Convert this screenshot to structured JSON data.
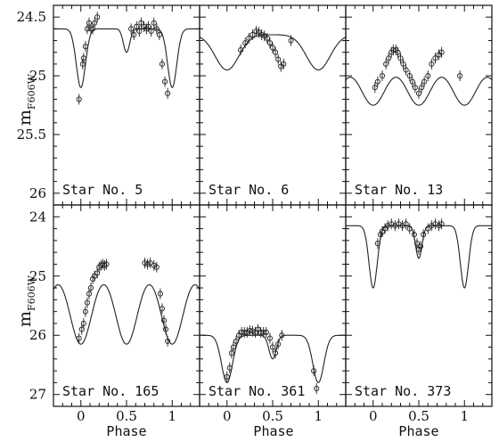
{
  "figure": {
    "ylabel_main": "m",
    "ylabel_sub": "F606W",
    "xlabel": "Phase"
  },
  "chart_data": [
    {
      "type": "scatter",
      "panel": "Star No. 5",
      "xlim": [
        -0.3,
        1.3
      ],
      "ylim": [
        26.1,
        24.4
      ],
      "xticks": [],
      "yticks": [
        "24.5",
        "25",
        "25.5",
        "26"
      ],
      "model": {
        "base": 24.6,
        "primary": {
          "center": 0.0,
          "depth": 0.5,
          "width": 0.05
        },
        "secondary": {
          "center": 0.5,
          "depth": 0.2,
          "width": 0.035
        }
      },
      "points": [
        [
          -0.02,
          25.2
        ],
        [
          0.02,
          24.9
        ],
        [
          0.03,
          24.85
        ],
        [
          0.05,
          24.75
        ],
        [
          0.07,
          24.6
        ],
        [
          0.09,
          24.55
        ],
        [
          0.11,
          24.6
        ],
        [
          0.13,
          24.6
        ],
        [
          0.15,
          24.55
        ],
        [
          0.18,
          24.5
        ],
        [
          0.55,
          24.6
        ],
        [
          0.58,
          24.65
        ],
        [
          0.61,
          24.58
        ],
        [
          0.64,
          24.62
        ],
        [
          0.66,
          24.55
        ],
        [
          0.69,
          24.58
        ],
        [
          0.72,
          24.6
        ],
        [
          0.74,
          24.58
        ],
        [
          0.77,
          24.62
        ],
        [
          0.8,
          24.55
        ],
        [
          0.83,
          24.6
        ],
        [
          0.86,
          24.65
        ],
        [
          0.89,
          24.9
        ],
        [
          0.92,
          25.05
        ],
        [
          0.95,
          25.15
        ]
      ]
    },
    {
      "type": "scatter",
      "panel": "Star No. 6",
      "xlim": [
        -0.3,
        1.3
      ],
      "ylim": [
        26.1,
        24.4
      ],
      "xticks": [],
      "yticks": [],
      "model": {
        "base": 24.65,
        "primary": {
          "center": 0.0,
          "depth": 0.3,
          "width": 0.13
        },
        "secondary": {
          "center": 0.5,
          "depth": 0.0,
          "width": 0.13
        }
      },
      "points": [
        [
          0.15,
          24.78
        ],
        [
          0.2,
          24.72
        ],
        [
          0.24,
          24.68
        ],
        [
          0.28,
          24.65
        ],
        [
          0.32,
          24.62
        ],
        [
          0.35,
          24.63
        ],
        [
          0.38,
          24.65
        ],
        [
          0.41,
          24.66
        ],
        [
          0.44,
          24.68
        ],
        [
          0.47,
          24.72
        ],
        [
          0.5,
          24.76
        ],
        [
          0.53,
          24.8
        ],
        [
          0.56,
          24.86
        ],
        [
          0.59,
          24.92
        ],
        [
          0.62,
          24.9
        ],
        [
          0.7,
          24.7
        ]
      ]
    },
    {
      "type": "scatter",
      "panel": "Star No. 13",
      "xlim": [
        -0.3,
        1.3
      ],
      "ylim": [
        26.1,
        24.4
      ],
      "xticks": [],
      "yticks": [],
      "model": {
        "base": 24.85,
        "primary": {
          "center": 0.0,
          "depth": 0.4,
          "width": 0.14
        },
        "secondary": {
          "center": 0.5,
          "depth": 0.4,
          "width": 0.14
        }
      },
      "points": [
        [
          0.02,
          25.1
        ],
        [
          0.05,
          25.05
        ],
        [
          0.1,
          25.0
        ],
        [
          0.14,
          24.9
        ],
        [
          0.17,
          24.85
        ],
        [
          0.2,
          24.8
        ],
        [
          0.22,
          24.78
        ],
        [
          0.25,
          24.78
        ],
        [
          0.27,
          24.8
        ],
        [
          0.3,
          24.85
        ],
        [
          0.33,
          24.9
        ],
        [
          0.36,
          24.95
        ],
        [
          0.4,
          25.0
        ],
        [
          0.43,
          25.05
        ],
        [
          0.46,
          25.1
        ],
        [
          0.5,
          25.15
        ],
        [
          0.53,
          25.1
        ],
        [
          0.56,
          25.05
        ],
        [
          0.6,
          25.0
        ],
        [
          0.64,
          24.9
        ],
        [
          0.68,
          24.85
        ],
        [
          0.72,
          24.82
        ],
        [
          0.75,
          24.8
        ],
        [
          0.95,
          25.0
        ]
      ]
    },
    {
      "type": "scatter",
      "panel": "Star No. 165",
      "xlim": [
        -0.3,
        1.3
      ],
      "ylim": [
        27.2,
        23.8
      ],
      "xticks": [
        "0",
        "0.5",
        "1"
      ],
      "yticks": [
        "24",
        "25",
        "26",
        "27"
      ],
      "model": {
        "base": 24.85,
        "primary": {
          "center": 0.0,
          "depth": 1.3,
          "width": 0.12
        },
        "secondary": {
          "center": 0.5,
          "depth": 1.3,
          "width": 0.12
        }
      },
      "points": [
        [
          -0.02,
          26.05
        ],
        [
          0.01,
          25.9
        ],
        [
          0.03,
          25.8
        ],
        [
          0.05,
          25.6
        ],
        [
          0.07,
          25.45
        ],
        [
          0.09,
          25.3
        ],
        [
          0.11,
          25.2
        ],
        [
          0.13,
          25.05
        ],
        [
          0.15,
          25.0
        ],
        [
          0.18,
          24.95
        ],
        [
          0.2,
          24.85
        ],
        [
          0.22,
          24.82
        ],
        [
          0.24,
          24.8
        ],
        [
          0.26,
          24.82
        ],
        [
          0.28,
          24.8
        ],
        [
          0.7,
          24.78
        ],
        [
          0.73,
          24.8
        ],
        [
          0.76,
          24.78
        ],
        [
          0.8,
          24.82
        ],
        [
          0.83,
          24.85
        ],
        [
          0.87,
          25.3
        ],
        [
          0.89,
          25.55
        ],
        [
          0.91,
          25.75
        ],
        [
          0.93,
          25.9
        ],
        [
          0.95,
          26.1
        ]
      ]
    },
    {
      "type": "scatter",
      "panel": "Star No. 361",
      "xlim": [
        -0.3,
        1.3
      ],
      "ylim": [
        27.2,
        23.8
      ],
      "xticks": [
        "0",
        "0.5",
        "1"
      ],
      "yticks": [],
      "model": {
        "base": 26.0,
        "primary": {
          "center": 0.0,
          "depth": 0.8,
          "width": 0.06
        },
        "secondary": {
          "center": 0.5,
          "depth": 0.4,
          "width": 0.04
        }
      },
      "points": [
        [
          0.0,
          26.7
        ],
        [
          0.03,
          26.55
        ],
        [
          0.05,
          26.3
        ],
        [
          0.07,
          26.2
        ],
        [
          0.1,
          26.1
        ],
        [
          0.13,
          26.0
        ],
        [
          0.16,
          25.95
        ],
        [
          0.19,
          25.95
        ],
        [
          0.22,
          25.95
        ],
        [
          0.25,
          25.92
        ],
        [
          0.28,
          25.93
        ],
        [
          0.31,
          25.95
        ],
        [
          0.34,
          25.9
        ],
        [
          0.37,
          25.95
        ],
        [
          0.4,
          25.95
        ],
        [
          0.43,
          25.95
        ],
        [
          0.47,
          26.05
        ],
        [
          0.5,
          26.2
        ],
        [
          0.53,
          26.3
        ],
        [
          0.56,
          26.15
        ],
        [
          0.6,
          26.0
        ],
        [
          0.95,
          26.6
        ],
        [
          0.98,
          26.9
        ]
      ]
    },
    {
      "type": "scatter",
      "panel": "Star No. 373",
      "xlim": [
        -0.3,
        1.3
      ],
      "ylim": [
        27.2,
        23.8
      ],
      "xticks": [
        "0",
        "0.5",
        "1"
      ],
      "yticks": [],
      "model": {
        "base": 24.15,
        "primary": {
          "center": 0.0,
          "depth": 1.05,
          "width": 0.045
        },
        "secondary": {
          "center": 0.5,
          "depth": 0.55,
          "width": 0.035
        }
      },
      "points": [
        [
          0.05,
          24.45
        ],
        [
          0.08,
          24.3
        ],
        [
          0.1,
          24.25
        ],
        [
          0.13,
          24.2
        ],
        [
          0.16,
          24.15
        ],
        [
          0.2,
          24.12
        ],
        [
          0.24,
          24.15
        ],
        [
          0.28,
          24.12
        ],
        [
          0.32,
          24.15
        ],
        [
          0.36,
          24.12
        ],
        [
          0.4,
          24.2
        ],
        [
          0.45,
          24.3
        ],
        [
          0.48,
          24.45
        ],
        [
          0.5,
          24.55
        ],
        [
          0.52,
          24.5
        ],
        [
          0.55,
          24.3
        ],
        [
          0.6,
          24.2
        ],
        [
          0.64,
          24.15
        ],
        [
          0.68,
          24.12
        ],
        [
          0.72,
          24.15
        ],
        [
          0.75,
          24.12
        ]
      ]
    }
  ]
}
